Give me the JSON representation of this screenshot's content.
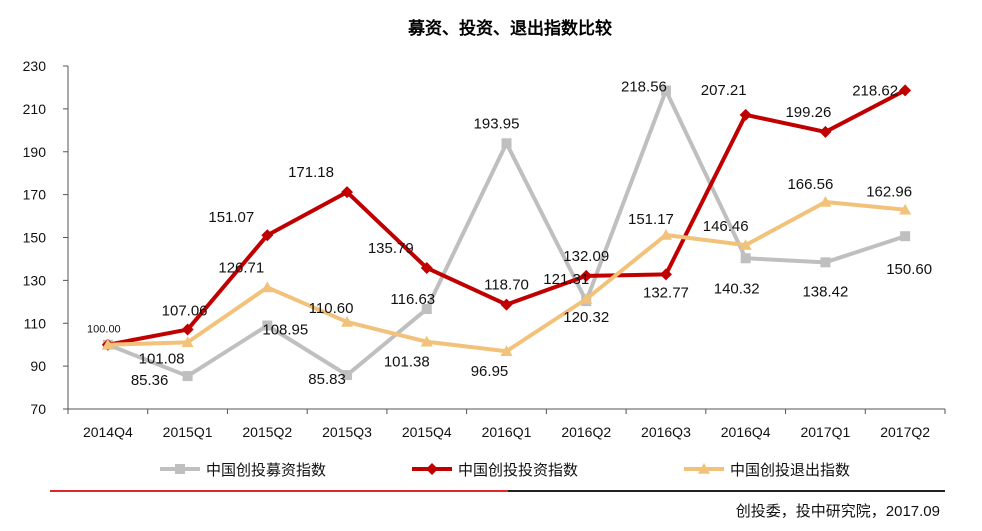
{
  "chart_data": {
    "type": "line",
    "title": "募资、投资、退出指数比较",
    "categories": [
      "2014Q4",
      "2015Q1",
      "2015Q2",
      "2015Q3",
      "2015Q4",
      "2016Q1",
      "2016Q2",
      "2016Q3",
      "2016Q4",
      "2017Q1",
      "2017Q2"
    ],
    "ylim": [
      70,
      230
    ],
    "yticks": [
      70,
      90,
      110,
      130,
      150,
      170,
      190,
      210,
      230
    ],
    "grid": false,
    "legend_position": "bottom",
    "series": [
      {
        "name": "中国创投募资指数",
        "color": "#bfbfbf",
        "marker": "square",
        "values": [
          100.0,
          85.36,
          108.95,
          85.83,
          116.63,
          193.95,
          120.32,
          218.56,
          140.32,
          138.42,
          150.6
        ],
        "labels": [
          "100.00",
          "85.36",
          "108.95",
          "85.83",
          "116.63",
          "193.95",
          "120.32",
          "218.56",
          "140.32",
          "138.42",
          "150.60"
        ]
      },
      {
        "name": "中国创投投资指数",
        "color": "#c00000",
        "marker": "diamond",
        "values": [
          100.0,
          107.06,
          151.07,
          171.18,
          135.79,
          118.7,
          132.09,
          132.77,
          207.21,
          199.26,
          218.62
        ],
        "labels": [
          "",
          "107.06",
          "151.07",
          "171.18",
          "135.79",
          "118.70",
          "132.09",
          "132.77",
          "207.21",
          "199.26",
          "218.62"
        ]
      },
      {
        "name": "中国创投退出指数",
        "color": "#f2c27a",
        "marker": "triangle",
        "values": [
          100.0,
          101.08,
          126.71,
          110.6,
          101.38,
          96.95,
          121.31,
          151.17,
          146.46,
          166.56,
          162.96
        ],
        "labels": [
          "",
          "101.08",
          "126.71",
          "110.60",
          "101.38",
          "96.95",
          "121.31",
          "151.17",
          "146.46",
          "166.56",
          "162.96"
        ]
      }
    ],
    "source": "创投委，投中研究院，2017.09"
  }
}
